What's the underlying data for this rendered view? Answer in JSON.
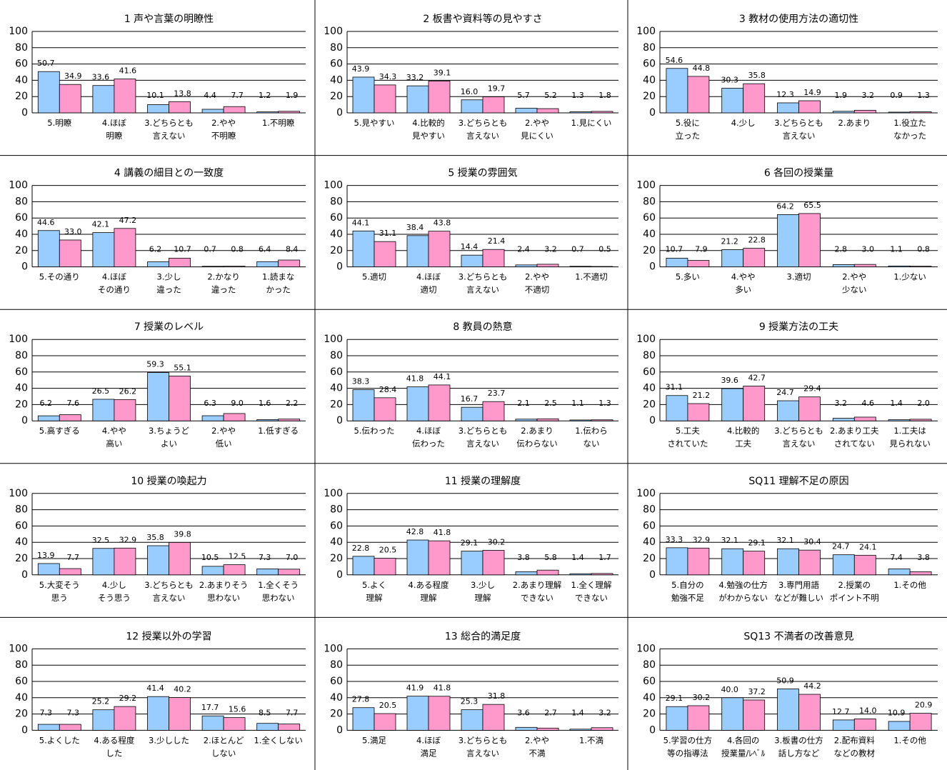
{
  "chart_data": [
    {
      "type": "bar",
      "title": "1 声や言葉の明瞭性",
      "categories": [
        [
          "5.明瞭"
        ],
        [
          "4.ほぼ",
          "明瞭"
        ],
        [
          "3.どちらとも",
          "言えない"
        ],
        [
          "2.やや",
          "不明瞭"
        ],
        [
          "1.不明瞭"
        ]
      ],
      "series": [
        {
          "color": "#99ccff",
          "values": [
            50.7,
            33.6,
            10.1,
            4.4,
            1.2
          ],
          "value_labels": [
            "50.7",
            "33.6",
            "10.1",
            "4.4",
            "1.2"
          ]
        },
        {
          "color": "#ff99cc",
          "values": [
            34.9,
            41.6,
            13.8,
            7.7,
            1.9
          ],
          "value_labels": [
            "34.9",
            "41.6",
            "13.8",
            "7.7",
            "1.9"
          ]
        }
      ],
      "ylim": [
        0,
        100
      ],
      "yticks": [
        0,
        20,
        40,
        60,
        80,
        100
      ],
      "grid": true
    },
    {
      "type": "bar",
      "title": "2 板書や資料等の見やすさ",
      "categories": [
        [
          "5.見やすい"
        ],
        [
          "4.比較的",
          "見やすい"
        ],
        [
          "3.どちらとも",
          "言えない"
        ],
        [
          "2.やや",
          "見にくい"
        ],
        [
          "1.見にくい"
        ]
      ],
      "series": [
        {
          "color": "#99ccff",
          "values": [
            43.9,
            33.2,
            16.0,
            5.7,
            1.3
          ],
          "value_labels": [
            "43.9",
            "33.2",
            "16.0",
            "5.7",
            "1.3"
          ]
        },
        {
          "color": "#ff99cc",
          "values": [
            34.3,
            39.1,
            19.7,
            5.2,
            1.8
          ],
          "value_labels": [
            "34.3",
            "39.1",
            "19.7",
            "5.2",
            "1.8"
          ]
        }
      ],
      "ylim": [
        0,
        100
      ],
      "yticks": [
        0,
        20,
        40,
        60,
        80,
        100
      ],
      "grid": true
    },
    {
      "type": "bar",
      "title": "3 教材の使用方法の適切性",
      "categories": [
        [
          "5.役に",
          "立った"
        ],
        [
          "4.少し"
        ],
        [
          "3.どちらとも",
          "言えない"
        ],
        [
          "2.あまり"
        ],
        [
          "1.役立た",
          "なかった"
        ]
      ],
      "series": [
        {
          "color": "#99ccff",
          "values": [
            54.6,
            30.3,
            12.3,
            1.9,
            0.9
          ],
          "value_labels": [
            "54.6",
            "30.3",
            "12.3",
            "1.9",
            "0.9"
          ]
        },
        {
          "color": "#ff99cc",
          "values": [
            44.8,
            35.8,
            14.9,
            3.2,
            1.3
          ],
          "value_labels": [
            "44.8",
            "35.8",
            "14.9",
            "3.2",
            "1.3"
          ]
        }
      ],
      "ylim": [
        0,
        100
      ],
      "yticks": [
        0,
        20,
        40,
        60,
        80,
        100
      ],
      "grid": true
    },
    {
      "type": "bar",
      "title": "4 講義の細目との一致度",
      "categories": [
        [
          "5.その通り"
        ],
        [
          "4.ほぼ",
          "その通り"
        ],
        [
          "3.少し",
          "違った"
        ],
        [
          "2.かなり",
          "違った"
        ],
        [
          "1.読まな",
          "かった"
        ]
      ],
      "series": [
        {
          "color": "#99ccff",
          "values": [
            44.6,
            42.1,
            6.2,
            0.7,
            6.4
          ],
          "value_labels": [
            "44.6",
            "42.1",
            "6.2",
            "0.7",
            "6.4"
          ]
        },
        {
          "color": "#ff99cc",
          "values": [
            33.0,
            47.2,
            10.7,
            0.8,
            8.4
          ],
          "value_labels": [
            "33.0",
            "47.2",
            "10.7",
            "0.8",
            "8.4"
          ]
        }
      ],
      "ylim": [
        0,
        100
      ],
      "yticks": [
        0,
        20,
        40,
        60,
        80,
        100
      ],
      "grid": true
    },
    {
      "type": "bar",
      "title": "5 授業の雰囲気",
      "categories": [
        [
          "5.適切"
        ],
        [
          "4.ほぼ",
          "適切"
        ],
        [
          "3.どちらとも",
          "言えない"
        ],
        [
          "2.やや",
          "不適切"
        ],
        [
          "1.不適切"
        ]
      ],
      "series": [
        {
          "color": "#99ccff",
          "values": [
            44.1,
            38.4,
            14.4,
            2.4,
            0.7
          ],
          "value_labels": [
            "44.1",
            "38.4",
            "14.4",
            "2.4",
            "0.7"
          ]
        },
        {
          "color": "#ff99cc",
          "values": [
            31.1,
            43.8,
            21.4,
            3.2,
            0.5
          ],
          "value_labels": [
            "31.1",
            "43.8",
            "21.4",
            "3.2",
            "0.5"
          ]
        }
      ],
      "ylim": [
        0,
        100
      ],
      "yticks": [
        0,
        20,
        40,
        60,
        80,
        100
      ],
      "grid": true
    },
    {
      "type": "bar",
      "title": "6 各回の授業量",
      "categories": [
        [
          "5.多い"
        ],
        [
          "4.やや",
          "多い"
        ],
        [
          "3.適切"
        ],
        [
          "2.やや",
          "少ない"
        ],
        [
          "1.少ない"
        ]
      ],
      "series": [
        {
          "color": "#99ccff",
          "values": [
            10.7,
            21.2,
            64.2,
            2.8,
            1.1
          ],
          "value_labels": [
            "10.7",
            "21.2",
            "64.2",
            "2.8",
            "1.1"
          ]
        },
        {
          "color": "#ff99cc",
          "values": [
            7.9,
            22.8,
            65.5,
            3.0,
            0.8
          ],
          "value_labels": [
            "7.9",
            "22.8",
            "65.5",
            "3.0",
            "0.8"
          ]
        }
      ],
      "ylim": [
        0,
        100
      ],
      "yticks": [
        0,
        20,
        40,
        60,
        80,
        100
      ],
      "grid": true
    },
    {
      "type": "bar",
      "title": "7 授業のレベル",
      "categories": [
        [
          "5.高すぎる"
        ],
        [
          "4.やや",
          "高い"
        ],
        [
          "3.ちょうど",
          "よい"
        ],
        [
          "2.やや",
          "低い"
        ],
        [
          "1.低すぎる"
        ]
      ],
      "series": [
        {
          "color": "#99ccff",
          "values": [
            6.2,
            26.5,
            59.3,
            6.3,
            1.6
          ],
          "value_labels": [
            "6.2",
            "26.5",
            "59.3",
            "6.3",
            "1.6"
          ]
        },
        {
          "color": "#ff99cc",
          "values": [
            7.6,
            26.2,
            55.1,
            9.0,
            2.2
          ],
          "value_labels": [
            "7.6",
            "26.2",
            "55.1",
            "9.0",
            "2.2"
          ]
        }
      ],
      "ylim": [
        0,
        100
      ],
      "yticks": [
        0,
        20,
        40,
        60,
        80,
        100
      ],
      "grid": true
    },
    {
      "type": "bar",
      "title": "8 教員の熱意",
      "categories": [
        [
          "5.伝わった"
        ],
        [
          "4.ほぼ",
          "伝わった"
        ],
        [
          "3.どちらとも",
          "言えない"
        ],
        [
          "2.あまり",
          "伝わらない"
        ],
        [
          "1.伝わら",
          "ない"
        ]
      ],
      "series": [
        {
          "color": "#99ccff",
          "values": [
            38.3,
            41.8,
            16.7,
            2.1,
            1.1
          ],
          "value_labels": [
            "38.3",
            "41.8",
            "16.7",
            "2.1",
            "1.1"
          ]
        },
        {
          "color": "#ff99cc",
          "values": [
            28.4,
            44.1,
            23.7,
            2.5,
            1.3
          ],
          "value_labels": [
            "28.4",
            "44.1",
            "23.7",
            "2.5",
            "1.3"
          ]
        }
      ],
      "ylim": [
        0,
        100
      ],
      "yticks": [
        0,
        20,
        40,
        60,
        80,
        100
      ],
      "grid": true
    },
    {
      "type": "bar",
      "title": "9 授業方法の工夫",
      "categories": [
        [
          "5.工夫",
          "されていた"
        ],
        [
          "4.比較的",
          "工夫"
        ],
        [
          "3.どちらとも",
          "言えない"
        ],
        [
          "2.あまり工夫",
          "されてない"
        ],
        [
          "1.工夫は",
          "見られない"
        ]
      ],
      "series": [
        {
          "color": "#99ccff",
          "values": [
            31.1,
            39.6,
            24.7,
            3.2,
            1.4
          ],
          "value_labels": [
            "31.1",
            "39.6",
            "24.7",
            "3.2",
            "1.4"
          ]
        },
        {
          "color": "#ff99cc",
          "values": [
            21.2,
            42.7,
            29.4,
            4.6,
            2.0
          ],
          "value_labels": [
            "21.2",
            "42.7",
            "29.4",
            "4.6",
            "2.0"
          ]
        }
      ],
      "ylim": [
        0,
        100
      ],
      "yticks": [
        0,
        20,
        40,
        60,
        80,
        100
      ],
      "grid": true
    },
    {
      "type": "bar",
      "title": "10 授業の喚起力",
      "categories": [
        [
          "5.大変そう",
          "思う"
        ],
        [
          "4.少し",
          "そう思う"
        ],
        [
          "3.どちらとも",
          "言えない"
        ],
        [
          "2.あまりそう",
          "思わない"
        ],
        [
          "1.全くそう",
          "思わない"
        ]
      ],
      "series": [
        {
          "color": "#99ccff",
          "values": [
            13.9,
            32.5,
            35.8,
            10.5,
            7.3
          ],
          "value_labels": [
            "13.9",
            "32.5",
            "35.8",
            "10.5",
            "7.3"
          ]
        },
        {
          "color": "#ff99cc",
          "values": [
            7.7,
            32.9,
            39.8,
            12.5,
            7.0
          ],
          "value_labels": [
            "7.7",
            "32.9",
            "39.8",
            "12.5",
            "7.0"
          ]
        }
      ],
      "ylim": [
        0,
        100
      ],
      "yticks": [
        0,
        20,
        40,
        60,
        80,
        100
      ],
      "grid": true
    },
    {
      "type": "bar",
      "title": "11 授業の理解度",
      "categories": [
        [
          "5.よく",
          "理解"
        ],
        [
          "4.ある程度",
          "理解"
        ],
        [
          "3.少し",
          "理解"
        ],
        [
          "2.あまり理解",
          "できない"
        ],
        [
          "1.全く理解",
          "できない"
        ]
      ],
      "series": [
        {
          "color": "#99ccff",
          "values": [
            22.8,
            42.8,
            29.1,
            3.8,
            1.4
          ],
          "value_labels": [
            "22.8",
            "42.8",
            "29.1",
            "3.8",
            "1.4"
          ]
        },
        {
          "color": "#ff99cc",
          "values": [
            20.5,
            41.8,
            30.2,
            5.8,
            1.7
          ],
          "value_labels": [
            "20.5",
            "41.8",
            "30.2",
            "5.8",
            "1.7"
          ]
        }
      ],
      "ylim": [
        0,
        100
      ],
      "yticks": [
        0,
        20,
        40,
        60,
        80,
        100
      ],
      "grid": true
    },
    {
      "type": "bar",
      "title": "SQ11 理解不足の原因",
      "categories": [
        [
          "5.自分の",
          "勉強不足"
        ],
        [
          "4.勉強の仕方",
          "がわからない"
        ],
        [
          "3.専門用語",
          "などが難しい"
        ],
        [
          "2.授業の",
          "ポイント不明"
        ],
        [
          "1.その他"
        ]
      ],
      "series": [
        {
          "color": "#99ccff",
          "values": [
            33.3,
            32.1,
            32.1,
            24.7,
            7.4
          ],
          "value_labels": [
            "33.3",
            "32.1",
            "32.1",
            "24.7",
            "7.4"
          ]
        },
        {
          "color": "#ff99cc",
          "values": [
            32.9,
            29.1,
            30.4,
            24.1,
            3.8
          ],
          "value_labels": [
            "32.9",
            "29.1",
            "30.4",
            "24.1",
            "3.8"
          ]
        }
      ],
      "ylim": [
        0,
        100
      ],
      "yticks": [
        0,
        20,
        40,
        60,
        80,
        100
      ],
      "grid": true
    },
    {
      "type": "bar",
      "title": "12 授業以外の学習",
      "categories": [
        [
          "5.よくした"
        ],
        [
          "4.ある程度",
          "した"
        ],
        [
          "3.少しした"
        ],
        [
          "2.ほとんど",
          "しない"
        ],
        [
          "1.全くしない"
        ]
      ],
      "series": [
        {
          "color": "#99ccff",
          "values": [
            7.3,
            25.2,
            41.4,
            17.7,
            8.5
          ],
          "value_labels": [
            "7.3",
            "25.2",
            "41.4",
            "17.7",
            "8.5"
          ]
        },
        {
          "color": "#ff99cc",
          "values": [
            7.3,
            29.2,
            40.2,
            15.6,
            7.7
          ],
          "value_labels": [
            "7.3",
            "29.2",
            "40.2",
            "15.6",
            "7.7"
          ]
        }
      ],
      "ylim": [
        0,
        100
      ],
      "yticks": [
        0,
        20,
        40,
        60,
        80,
        100
      ],
      "grid": true
    },
    {
      "type": "bar",
      "title": "13 総合的満足度",
      "categories": [
        [
          "5.満足"
        ],
        [
          "4.ほぼ",
          "満足"
        ],
        [
          "3.どちらとも",
          "言えない"
        ],
        [
          "2.やや",
          "不満"
        ],
        [
          "1.不満"
        ]
      ],
      "series": [
        {
          "color": "#99ccff",
          "values": [
            27.8,
            41.9,
            25.3,
            3.6,
            1.4
          ],
          "value_labels": [
            "27.8",
            "41.9",
            "25.3",
            "3.6",
            "1.4"
          ]
        },
        {
          "color": "#ff99cc",
          "values": [
            20.5,
            41.8,
            31.8,
            2.7,
            3.2
          ],
          "value_labels": [
            "20.5",
            "41.8",
            "31.8",
            "2.7",
            "3.2"
          ]
        }
      ],
      "ylim": [
        0,
        100
      ],
      "yticks": [
        0,
        20,
        40,
        60,
        80,
        100
      ],
      "grid": true
    },
    {
      "type": "bar",
      "title": "SQ13 不満者の改善意見",
      "categories": [
        [
          "5.学習の仕方",
          "等の指導法"
        ],
        [
          "4.各回の",
          "授業量/ﾚﾍﾞﾙ"
        ],
        [
          "3.板書の仕方",
          "話し方など"
        ],
        [
          "2.配布資料",
          "などの教材"
        ],
        [
          "1.その他"
        ]
      ],
      "series": [
        {
          "color": "#99ccff",
          "values": [
            29.1,
            40.0,
            50.9,
            12.7,
            10.9
          ],
          "value_labels": [
            "29.1",
            "40.0",
            "50.9",
            "12.7",
            "10.9"
          ]
        },
        {
          "color": "#ff99cc",
          "values": [
            30.2,
            37.2,
            44.2,
            14.0,
            20.9
          ],
          "value_labels": [
            "30.2",
            "37.2",
            "44.2",
            "14.0",
            "20.9"
          ]
        }
      ],
      "ylim": [
        0,
        100
      ],
      "yticks": [
        0,
        20,
        40,
        60,
        80,
        100
      ],
      "grid": true
    }
  ]
}
